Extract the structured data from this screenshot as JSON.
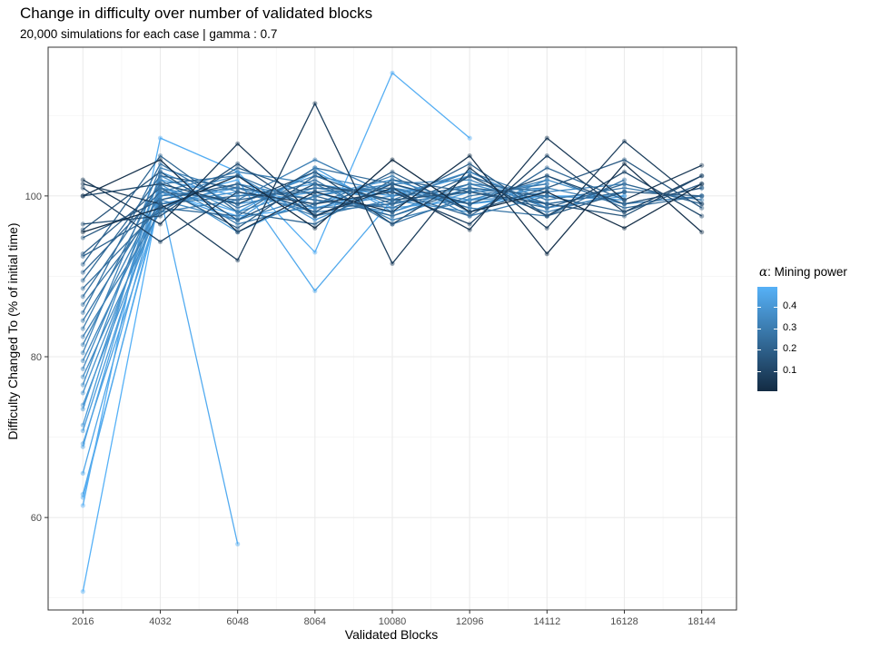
{
  "chart_data": {
    "type": "line",
    "title": "Change in difficulty over number of validated blocks",
    "subtitle": "20,000 simulations for each case | gamma : 0.7",
    "xlabel": "Validated Blocks",
    "ylabel": "Difficulty Changed To (% of initial time)",
    "x_ticks": [
      2016,
      4032,
      6048,
      8064,
      10080,
      12096,
      14112,
      16128,
      18144
    ],
    "y_ticks": [
      60,
      80,
      100
    ],
    "ylim": [
      48.5,
      118.5
    ],
    "grid": true,
    "legend": {
      "title_symbol": "α",
      "title_text": ": Mining power",
      "position": "right",
      "labels": [
        "0.4",
        "0.3",
        "0.2",
        "0.1"
      ],
      "label_values": [
        0.4,
        0.3,
        0.2,
        0.1
      ],
      "range": [
        0.01,
        0.49
      ],
      "color_low": "#132B43",
      "color_high": "#56B1F7"
    },
    "series": [
      {
        "alpha": 0.49,
        "y": [
          50.8,
          100.5,
          97.5,
          98.5,
          100.8,
          99.0,
          100.0,
          100.0
        ]
      },
      {
        "alpha": 0.48,
        "y": [
          61.5,
          107.2,
          103.0,
          93.0,
          115.3,
          107.2
        ]
      },
      {
        "alpha": 0.47,
        "y": [
          62.5,
          100.0,
          56.7
        ]
      },
      {
        "alpha": 0.46,
        "y": [
          62.9,
          99.5,
          102.0,
          88.2,
          99.5,
          100.5
        ]
      },
      {
        "alpha": 0.45,
        "y": [
          65.5,
          101.0,
          98.0,
          103.0,
          98.5,
          99.5,
          101.0
        ]
      },
      {
        "alpha": 0.44,
        "y": [
          68.8,
          102.0,
          100.0,
          101.5,
          100.0,
          102.5,
          99.0,
          100.5
        ]
      },
      {
        "alpha": 0.43,
        "y": [
          69.2,
          99.0,
          101.0,
          99.0,
          101.5,
          98.5
        ]
      },
      {
        "alpha": 0.42,
        "y": [
          70.8,
          100.5,
          97.0,
          103.5,
          98.0,
          101.0,
          100.0,
          99.5
        ]
      },
      {
        "alpha": 0.41,
        "y": [
          71.5,
          103.0,
          99.0,
          100.5,
          97.5,
          100.5,
          101.5
        ]
      },
      {
        "alpha": 0.4,
        "y": [
          73.5,
          101.5,
          95.5,
          100.0,
          102.0,
          99.0
        ]
      },
      {
        "alpha": 0.39,
        "y": [
          74.0,
          99.0,
          100.5,
          98.5,
          100.0,
          103.0,
          98.5,
          100.0
        ]
      },
      {
        "alpha": 0.38,
        "y": [
          75.5,
          100.0,
          102.5,
          97.0,
          101.0,
          99.5,
          100.0
        ]
      },
      {
        "alpha": 0.37,
        "y": [
          76.5,
          102.5,
          98.0,
          101.0,
          99.5,
          98.0,
          102.0,
          99.0,
          101.0
        ]
      },
      {
        "alpha": 0.36,
        "y": [
          77.5,
          98.5,
          101.5,
          99.5,
          98.0,
          101.5,
          99.0
        ]
      },
      {
        "alpha": 0.35,
        "y": [
          78.5,
          101.0,
          99.0,
          102.5,
          100.5,
          99.0,
          100.5,
          101.5
        ]
      },
      {
        "alpha": 0.34,
        "y": [
          79.5,
          99.5,
          97.0,
          100.0,
          101.5,
          102.0,
          98.5
        ]
      },
      {
        "alpha": 0.33,
        "y": [
          80.5,
          103.5,
          100.5,
          98.0,
          99.0,
          100.5,
          101.0,
          99.0,
          100.0
        ]
      },
      {
        "alpha": 0.32,
        "y": [
          81.5,
          100.5,
          103.0,
          101.5,
          97.0,
          99.5,
          102.0
        ]
      },
      {
        "alpha": 0.31,
        "y": [
          82.5,
          98.0,
          99.5,
          104.5,
          100.0,
          101.0,
          98.0,
          100.5
        ]
      },
      {
        "alpha": 0.3,
        "y": [
          83.5,
          102.0,
          96.5,
          99.0,
          102.5,
          97.5,
          100.0
        ]
      },
      {
        "alpha": 0.29,
        "y": [
          84.5,
          100.0,
          101.0,
          97.5,
          99.5,
          103.0,
          99.5,
          101.0,
          99.5
        ]
      },
      {
        "alpha": 0.28,
        "y": [
          85.5,
          104.0,
          98.5,
          102.0,
          96.5,
          100.0,
          101.5
        ]
      },
      {
        "alpha": 0.27,
        "y": [
          86.5,
          99.0,
          100.0,
          100.5,
          101.0,
          98.5,
          97.5,
          102.0
        ]
      },
      {
        "alpha": 0.26,
        "y": [
          87.5,
          101.5,
          102.5,
          98.5,
          99.0,
          101.5,
          100.5
        ]
      },
      {
        "alpha": 0.25,
        "y": [
          88.5,
          98.5,
          97.5,
          103.5,
          101.5,
          99.0,
          102.5,
          98.5,
          100.0
        ]
      },
      {
        "alpha": 0.24,
        "y": [
          89.5,
          102.5,
          101.0,
          99.5,
          98.5,
          102.5,
          99.0,
          100.5
        ]
      },
      {
        "alpha": 0.23,
        "y": [
          90.5,
          100.5,
          99.5,
          101.0,
          100.5,
          97.5,
          103.5,
          99.5
        ]
      },
      {
        "alpha": 0.22,
        "y": [
          91.5,
          105.0,
          98.0,
          96.5,
          102.0,
          100.5,
          98.5,
          101.5,
          99.0
        ]
      },
      {
        "alpha": 0.21,
        "y": [
          92.5,
          98.0,
          103.5,
          100.0,
          97.5,
          101.0,
          100.0,
          98.0,
          101.5
        ]
      },
      {
        "alpha": 0.2,
        "y": [
          92.8,
          101.0,
          96.0,
          102.5,
          99.0,
          104.0,
          97.5,
          100.5,
          100.0
        ]
      },
      {
        "alpha": 0.18,
        "y": [
          94.8,
          99.5,
          101.5,
          98.0,
          103.0,
          98.0,
          101.0,
          104.5,
          98.5
        ]
      },
      {
        "alpha": 0.16,
        "y": [
          95.8,
          103.0,
          97.0,
          101.5,
          99.5,
          100.5,
          99.0,
          97.5,
          102.5
        ]
      },
      {
        "alpha": 0.14,
        "y": [
          96.5,
          97.5,
          104.0,
          97.5,
          101.5,
          99.0,
          102.5,
          99.0,
          101.0
        ]
      },
      {
        "alpha": 0.12,
        "y": [
          100.0,
          101.5,
          99.0,
          103.0,
          96.5,
          102.5,
          97.5,
          103.0,
          97.5
        ]
      },
      {
        "alpha": 0.1,
        "y": [
          101.0,
          94.3,
          100.5,
          99.0,
          100.5,
          96.5,
          105.0,
          98.0,
          102.5
        ]
      },
      {
        "alpha": 0.08,
        "y": [
          101.5,
          99.0,
          92.0,
          111.5,
          91.6,
          103.5,
          96.0,
          106.8,
          99.0
        ]
      },
      {
        "alpha": 0.06,
        "y": [
          102.0,
          96.5,
          106.5,
          97.5,
          101.0,
          95.8,
          107.2,
          99.5,
          103.8
        ]
      },
      {
        "alpha": 0.04,
        "y": [
          100.0,
          104.5,
          95.5,
          100.5,
          98.0,
          105.0,
          92.8,
          104.0,
          95.5
        ]
      },
      {
        "alpha": 0.02,
        "y": [
          95.5,
          98.5,
          102.5,
          96.0,
          104.5,
          98.0,
          100.5,
          96.0,
          101.5
        ]
      }
    ]
  }
}
